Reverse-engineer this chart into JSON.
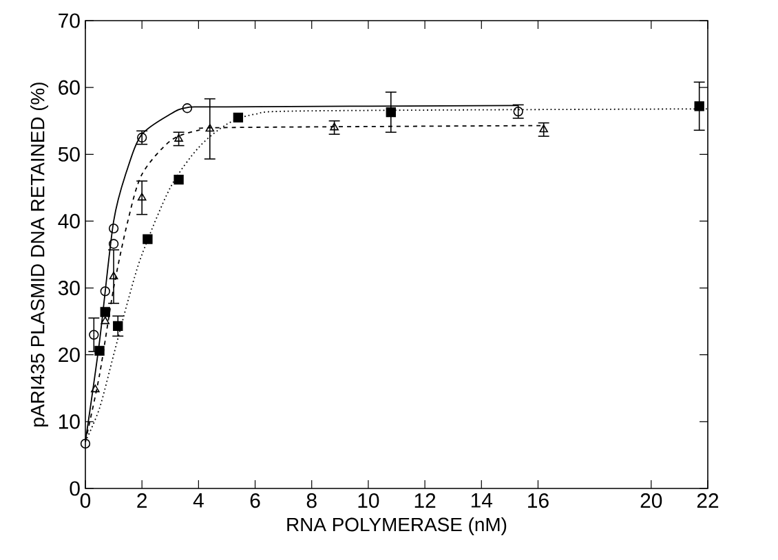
{
  "chart_data": {
    "type": "scatter",
    "xlabel": "RNA POLYMERASE (nM)",
    "ylabel": "pARI435 PLASMID DNA RETAINED (%)",
    "xlim": [
      0,
      22
    ],
    "ylim": [
      0,
      70
    ],
    "xticks": [
      0,
      2,
      4,
      6,
      8,
      10,
      12,
      14,
      16,
      20,
      22
    ],
    "yticks": [
      0,
      10,
      20,
      30,
      40,
      50,
      60,
      70
    ],
    "series": [
      {
        "marker": "circle",
        "color": "#000000",
        "x": [
          0,
          0.3,
          0.7,
          1.0,
          1.0,
          2.0,
          3.6,
          15.3
        ],
        "values": [
          6.7,
          23,
          29.5,
          38.9,
          36.6,
          52.5,
          56.9,
          56.4
        ],
        "errors": [
          null,
          2.5,
          null,
          null,
          null,
          1,
          null,
          1
        ]
      },
      {
        "marker": "triangle",
        "color": "#000000",
        "x": [
          0.35,
          0.7,
          1.0,
          2.0,
          3.3,
          4.4,
          8.8,
          16.2
        ],
        "values": [
          14.8,
          25,
          31.7,
          43.5,
          52.3,
          53.8,
          54,
          53.7
        ],
        "errors": [
          null,
          null,
          4,
          2.5,
          1,
          4.5,
          1,
          1
        ]
      },
      {
        "marker": "square",
        "color": "#000000",
        "x": [
          0.5,
          0.7,
          1.15,
          2.2,
          3.3,
          5.4,
          10.8,
          21.7
        ],
        "values": [
          20.6,
          26.4,
          24.3,
          37.3,
          46.2,
          55.5,
          56.3,
          57.2
        ],
        "errors": [
          null,
          null,
          1.5,
          null,
          null,
          null,
          3,
          3.6
        ]
      },
      {
        "type": "line",
        "marker": "none",
        "line_style": "solid",
        "color": "#000000",
        "x": [
          0,
          0.5,
          1,
          1.5,
          2,
          3,
          3.6,
          5,
          15.3
        ],
        "values": [
          7,
          22,
          40,
          48,
          53,
          56,
          57,
          57.1,
          57.3
        ]
      },
      {
        "type": "line",
        "marker": "none",
        "line_style": "dashed",
        "color": "#000000",
        "x": [
          0,
          0.5,
          1,
          1.5,
          2,
          3,
          4,
          5,
          16.2
        ],
        "values": [
          7,
          17,
          30,
          40,
          47,
          52,
          53.6,
          54,
          54.3
        ]
      },
      {
        "type": "line",
        "marker": "none",
        "line_style": "dotted",
        "color": "#000000",
        "x": [
          0,
          0.5,
          1,
          1.5,
          2,
          3,
          4,
          5,
          6,
          8,
          22
        ],
        "values": [
          7,
          12,
          20,
          28,
          35,
          45,
          51,
          54.5,
          56,
          56.5,
          56.8
        ]
      }
    ]
  }
}
